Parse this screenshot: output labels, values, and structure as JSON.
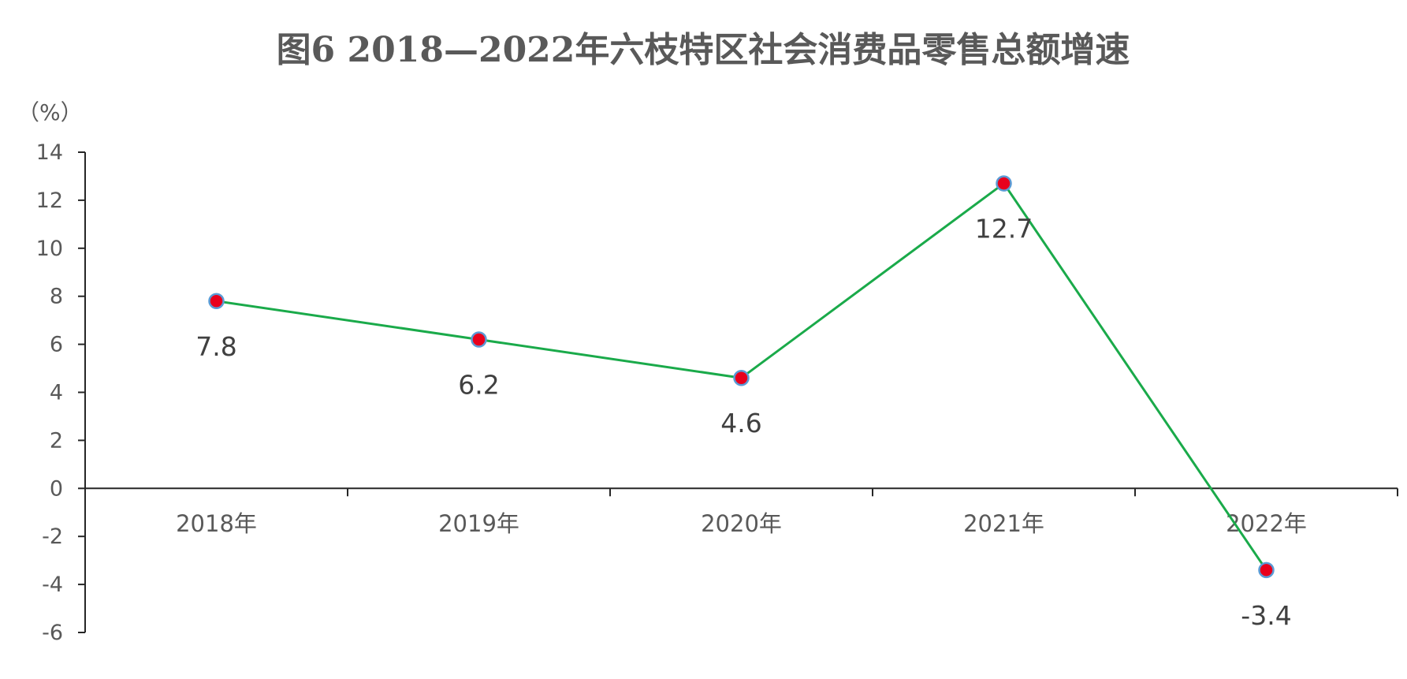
{
  "chart_data": {
    "type": "line",
    "title": "图6  2018—2022年六枝特区社会消费品零售总额增速",
    "unit_label": "（%）",
    "categories": [
      "2018年",
      "2019年",
      "2020年",
      "2021年",
      "2022年"
    ],
    "series": [
      {
        "values": [
          7.8,
          6.2,
          4.6,
          12.7,
          -3.4
        ],
        "data_labels": [
          "7.8",
          "6.2",
          "4.6",
          "12.7",
          "-3.4"
        ],
        "line_color": "#1aaa4a",
        "marker_color": "#e8001c",
        "marker_edge_color": "#5b9bd5"
      }
    ],
    "y_ticks": [
      "14",
      "12",
      "10",
      "8",
      "6",
      "4",
      "2",
      "0",
      "-2",
      "-4",
      "-6"
    ],
    "ylim": [
      -6,
      14
    ],
    "y_step": 2,
    "grid": false,
    "legend": "none"
  }
}
